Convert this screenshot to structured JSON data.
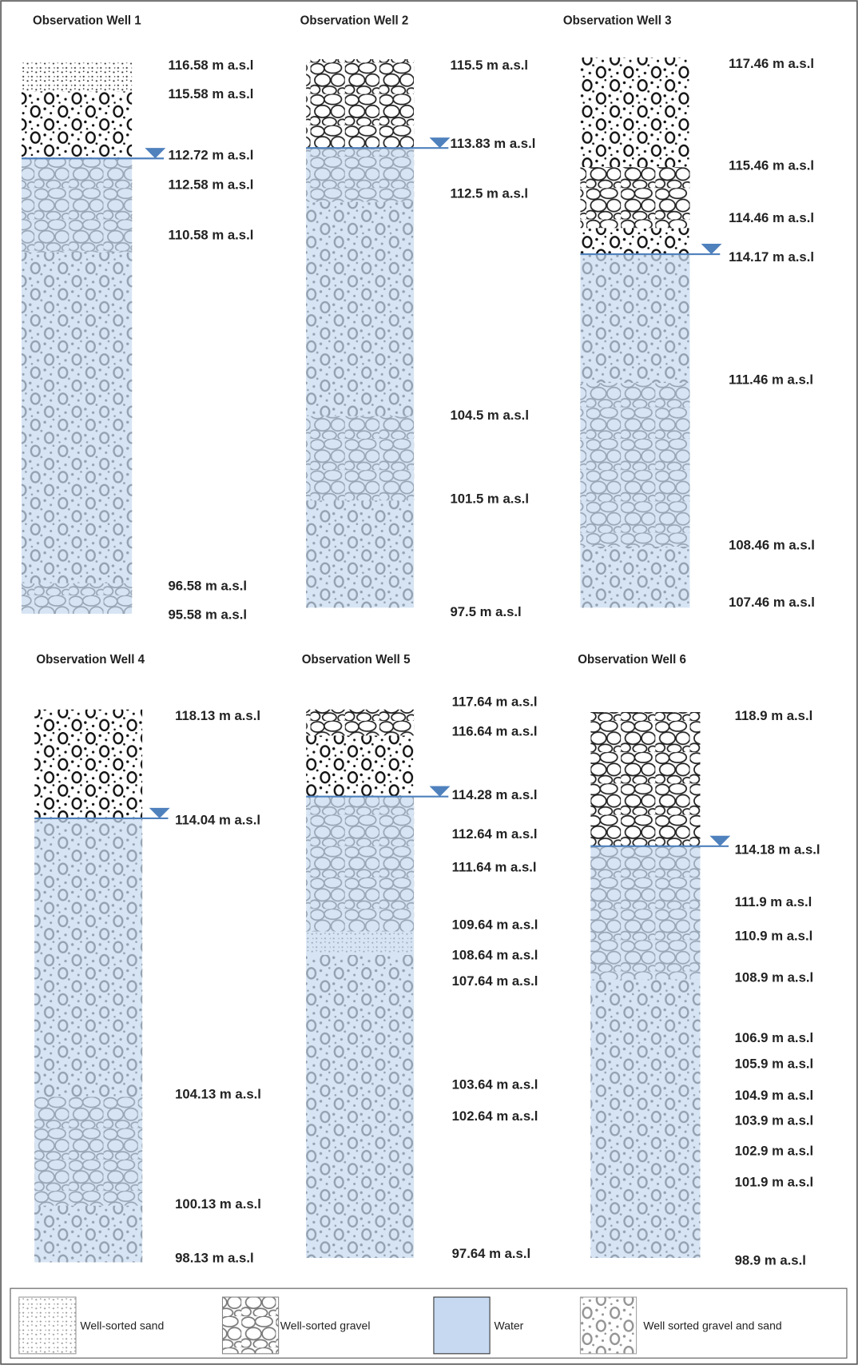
{
  "wells": [
    {
      "title": "Observation Well 1",
      "labels": [
        "116.58 m a.s.l",
        "115.58 m a.s.l",
        "112.72 m a.s.l",
        "112.58 m a.s.l",
        "110.58 m a.s.l",
        "96.58 m a.s.l",
        "95.58 m a.s.l"
      ]
    },
    {
      "title": "Observation Well 2",
      "labels": [
        "115.5 m a.s.l",
        "113.83 m a.s.l",
        "112.5 m a.s.l",
        "104.5 m a.s.l",
        "101.5 m a.s.l",
        "97.5 m a.s.l"
      ]
    },
    {
      "title": "Observation Well 3",
      "labels": [
        "117.46 m a.s.l",
        "115.46 m a.s.l",
        "114.46 m a.s.l",
        "114.17 m a.s.l",
        "111.46 m a.s.l",
        "108.46 m a.s.l",
        "107.46 m a.s.l"
      ]
    },
    {
      "title": "Observation Well 4",
      "labels": [
        "118.13 m a.s.l",
        "114.04 m a.s.l",
        "104.13 m a.s.l",
        "100.13 m a.s.l",
        "98.13 m a.s.l"
      ]
    },
    {
      "title": "Observation Well 5",
      "labels": [
        "117.64 m a.s.l",
        "116.64 m a.s.l",
        "114.28 m a.s.l",
        "112.64 m a.s.l",
        "111.64 m a.s.l",
        "109.64 m a.s.l",
        "108.64 m a.s.l",
        "107.64 m a.s.l",
        "103.64 m a.s.l",
        "102.64 m a.s.l",
        "97.64 m a.s.l"
      ]
    },
    {
      "title": "Observation Well 6",
      "labels": [
        "118.9 m a.s.l",
        "114.18 m a.s.l",
        "111.9 m a.s.l",
        "110.9 m a.s.l",
        "108.9 m a.s.l",
        "106.9 m a.s.l",
        "105.9 m a.s.l",
        "104.9 m a.s.l",
        "103.9 m a.s.l",
        "102.9 m a.s.l",
        "101.9 m a.s.l",
        "98.9 m a.s.l"
      ]
    }
  ],
  "legend": [
    "Well-sorted sand",
    "Well-sorted gravel",
    "Water",
    "Well sorted gravel and sand"
  ]
}
